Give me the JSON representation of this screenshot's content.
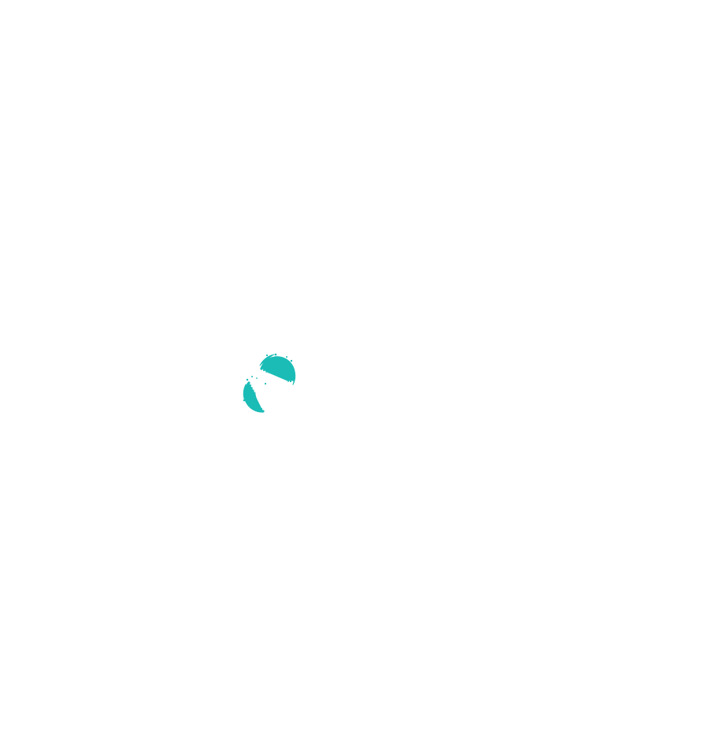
{
  "background_color": "#ffffff",
  "loader": {
    "icon": "loading-spinner-icon",
    "color": "#1bbcb6"
  }
}
